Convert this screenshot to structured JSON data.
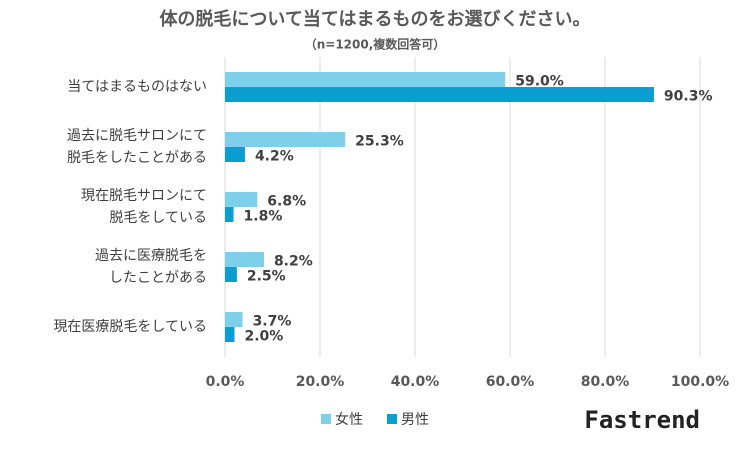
{
  "chart_data": {
    "type": "bar",
    "orientation": "horizontal",
    "title": "体の脱毛について当てはまるものをお選びください。",
    "subtitle": "（n=1200,複数回答可）",
    "categories": [
      [
        "当てはまるものはない"
      ],
      [
        "過去に脱毛サロンにて",
        "脱毛をしたことがある"
      ],
      [
        "現在脱毛サロンにて",
        "脱毛をしている"
      ],
      [
        "過去に医療脱毛を",
        "したことがある"
      ],
      [
        "現在医療脱毛をしている"
      ]
    ],
    "series": [
      {
        "name": "女性",
        "color": "#7ecfe9",
        "values": [
          59.0,
          25.3,
          6.8,
          8.2,
          3.7
        ],
        "value_labels": [
          "59.0%",
          "25.3%",
          "6.8%",
          "8.2%",
          "3.7%"
        ]
      },
      {
        "name": "男性",
        "color": "#0a9fd0",
        "values": [
          90.3,
          4.2,
          1.8,
          2.5,
          2.0
        ],
        "value_labels": [
          "90.3%",
          "4.2%",
          "1.8%",
          "2.5%",
          "2.0%"
        ]
      }
    ],
    "xlim": [
      0,
      100
    ],
    "xticks": [
      {
        "value": 0,
        "label": "0.0%"
      },
      {
        "value": 20,
        "label": "20.0%"
      },
      {
        "value": 40,
        "label": "40.0%"
      },
      {
        "value": 60,
        "label": "60.0%"
      },
      {
        "value": 80,
        "label": "80.0%"
      },
      {
        "value": 100,
        "label": "100.0%"
      }
    ],
    "grid": true,
    "legend": "bottom",
    "brand": "Fastrend"
  }
}
